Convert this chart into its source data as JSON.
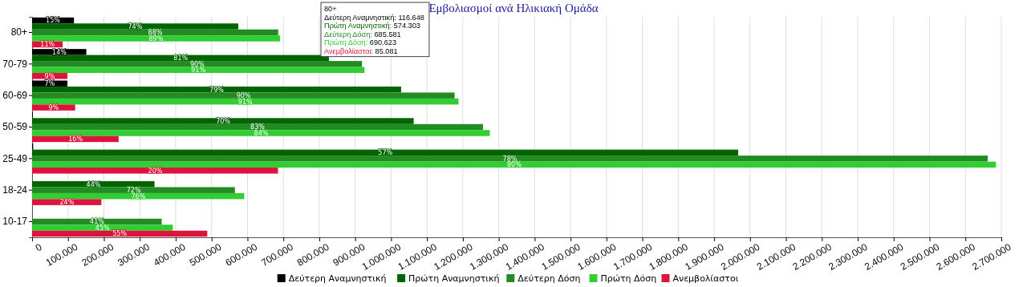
{
  "chart_data": {
    "type": "bar",
    "orientation": "horizontal",
    "title": "Εμβολιασμοί ανά Ηλικιακή Ομάδα",
    "categories": [
      "80+",
      "70-79",
      "60-69",
      "50-59",
      "25-49",
      "18-24",
      "10-17"
    ],
    "series": [
      {
        "name": "Δεύτερη Αναμνηστική",
        "color": "#000000",
        "values": [
          116648,
          151000,
          98000,
          2000,
          3000,
          null,
          null
        ]
      },
      {
        "name": "Πρώτη Αναμνηστική",
        "color": "#006400",
        "values": [
          574303,
          827000,
          1028000,
          1063000,
          1967000,
          341000,
          null
        ]
      },
      {
        "name": "Δεύτερη Δόση",
        "color": "#228b22",
        "values": [
          685581,
          919000,
          1177000,
          1256000,
          2662000,
          565000,
          361000
        ]
      },
      {
        "name": "Πρώτη Δόση",
        "color": "#32cd32",
        "values": [
          690623,
          926000,
          1188000,
          1275000,
          2685000,
          591000,
          392000
        ]
      },
      {
        "name": "Ανεμβολίαστοι",
        "color": "#dc143c",
        "values": [
          85081,
          98000,
          120000,
          241000,
          685000,
          193000,
          488000
        ]
      }
    ],
    "xlim": [
      0,
      2700000
    ],
    "xticks": [
      0,
      {
        "value": 100000,
        "label": "100.000"
      },
      {
        "value": 200000,
        "label": "200.000"
      },
      {
        "value": 300000,
        "label": "300.000"
      },
      {
        "value": 400000,
        "label": "400.000"
      },
      {
        "value": 500000,
        "label": "500.000"
      },
      {
        "value": 600000,
        "label": "600.000"
      },
      {
        "value": 700000,
        "label": "700.000"
      },
      {
        "value": 800000,
        "label": "800.000"
      },
      {
        "value": 900000,
        "label": "900.000"
      },
      {
        "value": 1000000,
        "label": "1.000.000"
      },
      {
        "value": 1100000,
        "label": "1.100.000"
      },
      {
        "value": 1200000,
        "label": "1.200.000"
      },
      {
        "value": 1300000,
        "label": "1.300.000"
      },
      {
        "value": 1400000,
        "label": "1.400.000"
      },
      {
        "value": 1500000,
        "label": "1.500.000"
      },
      {
        "value": 1600000,
        "label": "1.600.000"
      },
      {
        "value": 1700000,
        "label": "1.700.000"
      },
      {
        "value": 1800000,
        "label": "1.800.000"
      },
      {
        "value": 1900000,
        "label": "1.900.000"
      },
      {
        "value": 2000000,
        "label": "2.000.000"
      },
      {
        "value": 2100000,
        "label": "2.100.000"
      },
      {
        "value": 2200000,
        "label": "2.200.000"
      },
      {
        "value": 2300000,
        "label": "2.300.000"
      },
      {
        "value": 2400000,
        "label": "2.400.000"
      },
      {
        "value": 2500000,
        "label": "2.500.000"
      },
      {
        "value": 2600000,
        "label": "2.600.000"
      },
      {
        "value": 2700000,
        "label": "2.700.000"
      }
    ],
    "grid": "x",
    "legend": "bottom",
    "annotations": [
      "80+",
      "Δεύτερη Αναμνηστική: 116.648",
      "Πρώτη Αναμνηστική: 574.303",
      "Δεύτερη Δόση: 685.581",
      "Πρώτη Δόση: 690.623",
      "Ανεμβολίαστοι: 85.081",
      {
        "text": "15%",
        "x": 58000,
        "y": "80+"
      },
      {
        "text": "14%",
        "x": 76000,
        "y": "70-79"
      },
      {
        "text": "7%",
        "x": 49000,
        "y": "60-69"
      },
      {
        "text": "74%",
        "x": 287000,
        "y": "80+"
      },
      {
        "text": "81%",
        "x": 414000,
        "y": "70-79"
      },
      {
        "text": "79%",
        "x": 514000,
        "y": "60-69"
      },
      {
        "text": "70%",
        "x": 532000,
        "y": "50-59"
      },
      {
        "text": "57%",
        "x": 984000,
        "y": "25-49"
      },
      {
        "text": "44%",
        "x": 171000,
        "y": "18-24"
      },
      {
        "text": "88%",
        "x": 343000,
        "y": "80+"
      },
      {
        "text": "90%",
        "x": 460000,
        "y": "70-79"
      },
      {
        "text": "90%",
        "x": 589000,
        "y": "60-69"
      },
      {
        "text": "83%",
        "x": 628000,
        "y": "50-59"
      },
      {
        "text": "78%",
        "x": 1331000,
        "y": "25-49"
      },
      {
        "text": "72%",
        "x": 283000,
        "y": "18-24"
      },
      {
        "text": "41%",
        "x": 181000,
        "y": "10-17"
      },
      {
        "text": "89%",
        "x": 345000,
        "y": "80+"
      },
      {
        "text": "91%",
        "x": 463000,
        "y": "70-79"
      },
      {
        "text": "91%",
        "x": 594000,
        "y": "60-69"
      },
      {
        "text": "84%",
        "x": 638000,
        "y": "50-59"
      },
      {
        "text": "80%",
        "x": 1343000,
        "y": "25-49"
      },
      {
        "text": "76%",
        "x": 296000,
        "y": "18-24"
      },
      {
        "text": "45%",
        "x": 196000,
        "y": "10-17"
      },
      {
        "text": "11%",
        "x": 43000,
        "y": "80+"
      },
      {
        "text": "9%",
        "x": 49000,
        "y": "70-79"
      },
      {
        "text": "9%",
        "x": 60000,
        "y": "60-69"
      },
      {
        "text": "16%",
        "x": 121000,
        "y": "50-59"
      },
      {
        "text": "20%",
        "x": 343000,
        "y": "25-49"
      },
      {
        "text": "24%",
        "x": 97000,
        "y": "18-24"
      },
      {
        "text": "55%",
        "x": 244000,
        "y": "10-17"
      }
    ]
  }
}
